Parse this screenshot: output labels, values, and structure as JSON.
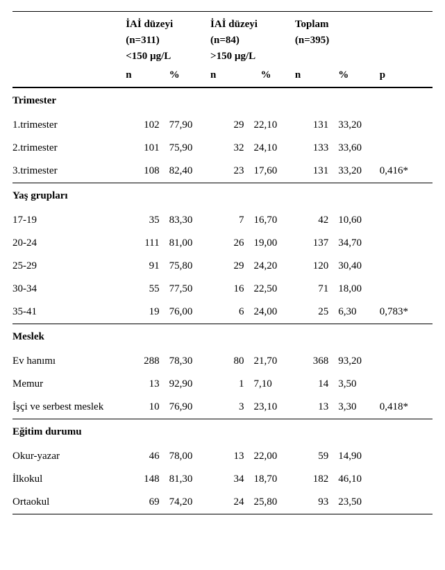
{
  "header": {
    "group1": {
      "title": "İAİ düzeyi",
      "n_label": "(n=311)",
      "range": "<150 µg/L"
    },
    "group2": {
      "title": "İAİ düzeyi",
      "n_label": "(n=84)",
      "range": ">150 µg/L"
    },
    "total": {
      "title": "Toplam",
      "n_label": "(n=395)"
    },
    "sub": {
      "n": "n",
      "pct": "%",
      "p": "p"
    }
  },
  "sections": [
    {
      "title": "Trimester",
      "rows": [
        {
          "label": "1.trimester",
          "g1n": "102",
          "g1p": "77,90",
          "g2n": "29",
          "g2p": "22,10",
          "tn": "131",
          "tp": "33,20",
          "p": ""
        },
        {
          "label": "2.trimester",
          "g1n": "101",
          "g1p": "75,90",
          "g2n": "32",
          "g2p": "24,10",
          "tn": "133",
          "tp": "33,60",
          "p": ""
        },
        {
          "label": "3.trimester",
          "g1n": "108",
          "g1p": "82,40",
          "g2n": "23",
          "g2p": "17,60",
          "tn": "131",
          "tp": "33,20",
          "p": "0,416*"
        }
      ]
    },
    {
      "title": "Yaş grupları",
      "rows": [
        {
          "label": "17-19",
          "g1n": "35",
          "g1p": "83,30",
          "g2n": "7",
          "g2p": "16,70",
          "tn": "42",
          "tp": "10,60",
          "p": ""
        },
        {
          "label": "20-24",
          "g1n": "111",
          "g1p": "81,00",
          "g2n": "26",
          "g2p": "19,00",
          "tn": "137",
          "tp": "34,70",
          "p": ""
        },
        {
          "label": "25-29",
          "g1n": "91",
          "g1p": "75,80",
          "g2n": "29",
          "g2p": "24,20",
          "tn": "120",
          "tp": "30,40",
          "p": ""
        },
        {
          "label": "30-34",
          "g1n": "55",
          "g1p": "77,50",
          "g2n": "16",
          "g2p": "22,50",
          "tn": "71",
          "tp": "18,00",
          "p": ""
        },
        {
          "label": "35-41",
          "g1n": "19",
          "g1p": "76,00",
          "g2n": "6",
          "g2p": "24,00",
          "tn": "25",
          "tp": "6,30",
          "p": "0,783*"
        }
      ]
    },
    {
      "title": "Meslek",
      "rows": [
        {
          "label": "Ev hanımı",
          "g1n": "288",
          "g1p": "78,30",
          "g2n": "80",
          "g2p": "21,70",
          "tn": "368",
          "tp": "93,20",
          "p": ""
        },
        {
          "label": "Memur",
          "g1n": "13",
          "g1p": "92,90",
          "g2n": "1",
          "g2p": "7,10",
          "tn": "14",
          "tp": "3,50",
          "p": ""
        },
        {
          "label": "İşçi ve serbest meslek",
          "g1n": "10",
          "g1p": "76,90",
          "g2n": "3",
          "g2p": "23,10",
          "tn": "13",
          "tp": "3,30",
          "p": "0,418*"
        }
      ]
    },
    {
      "title": "Eğitim durumu",
      "rows": [
        {
          "label": "Okur-yazar",
          "g1n": "46",
          "g1p": "78,00",
          "g2n": "13",
          "g2p": "22,00",
          "tn": "59",
          "tp": "14,90",
          "p": ""
        },
        {
          "label": "İlkokul",
          "g1n": "148",
          "g1p": "81,30",
          "g2n": "34",
          "g2p": "18,70",
          "tn": "182",
          "tp": "46,10",
          "p": ""
        },
        {
          "label": "Ortaokul",
          "g1n": "69",
          "g1p": "74,20",
          "g2n": "24",
          "g2p": "25,80",
          "tn": "93",
          "tp": "23,50",
          "p": ""
        }
      ]
    }
  ]
}
